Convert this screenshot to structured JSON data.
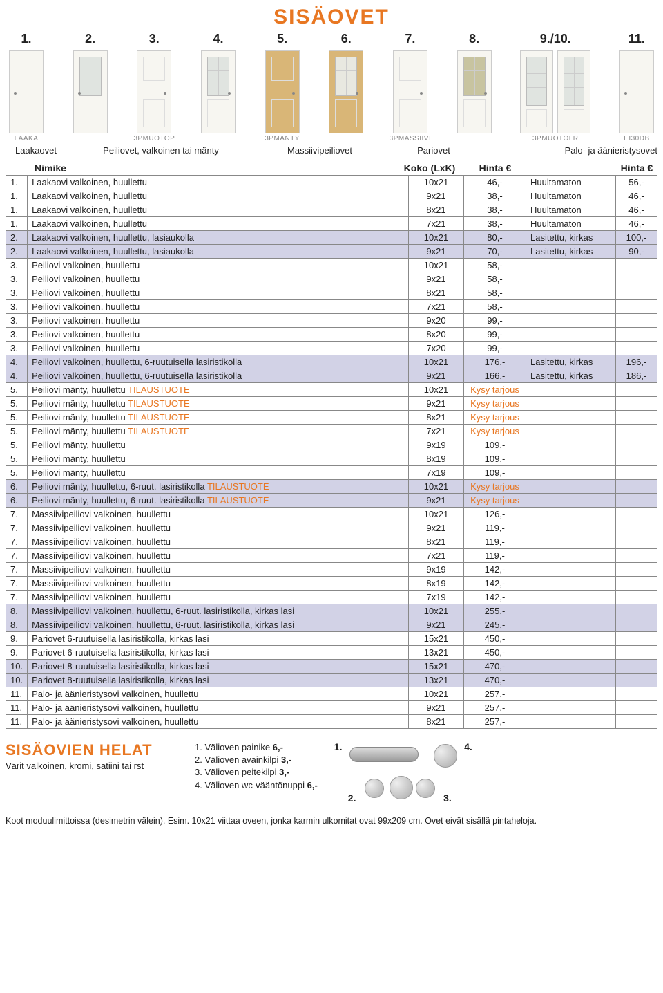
{
  "title": "SISÄOVET",
  "door_numbers": [
    "1.",
    "2.",
    "3.",
    "4.",
    "5.",
    "6.",
    "7.",
    "8.",
    "9./10.",
    "11."
  ],
  "door_codes": [
    "LAAKA",
    "3PMUOTOP",
    "3PMANTY",
    "3PMASSIIVI",
    "3PMUOTOLR",
    "EI30DB"
  ],
  "categories": {
    "c1": "Laakaovet",
    "c2": "Peiliovet, valkoinen tai mänty",
    "c3": "Massiivipeiliovet",
    "c4": "Pariovet",
    "c5": "Palo- ja äänieristysovet"
  },
  "headers": {
    "nimike": "Nimike",
    "koko": "Koko (LxK)",
    "hinta": "Hinta €",
    "hinta2": "Hinta €"
  },
  "rows": [
    {
      "n": "1.",
      "d": "Laakaovi valkoinen, huullettu",
      "s": "10x21",
      "p1": "46,-",
      "o": "Huultamaton",
      "p2": "56,-",
      "hl": 0
    },
    {
      "n": "1.",
      "d": "Laakaovi valkoinen, huullettu",
      "s": "9x21",
      "p1": "38,-",
      "o": "Huultamaton",
      "p2": "46,-",
      "hl": 0
    },
    {
      "n": "1.",
      "d": "Laakaovi valkoinen, huullettu",
      "s": "8x21",
      "p1": "38,-",
      "o": "Huultamaton",
      "p2": "46,-",
      "hl": 0
    },
    {
      "n": "1.",
      "d": "Laakaovi valkoinen, huullettu",
      "s": "7x21",
      "p1": "38,-",
      "o": "Huultamaton",
      "p2": "46,-",
      "hl": 0
    },
    {
      "n": "2.",
      "d": "Laakaovi valkoinen, huullettu, lasiaukolla",
      "s": "10x21",
      "p1": "80,-",
      "o": "Lasitettu, kirkas",
      "p2": "100,-",
      "hl": 1
    },
    {
      "n": "2.",
      "d": "Laakaovi valkoinen, huullettu, lasiaukolla",
      "s": "9x21",
      "p1": "70,-",
      "o": "Lasitettu, kirkas",
      "p2": "90,-",
      "hl": 1
    },
    {
      "n": "3.",
      "d": "Peiliovi valkoinen, huullettu",
      "s": "10x21",
      "p1": "58,-",
      "o": "",
      "p2": "",
      "hl": 0
    },
    {
      "n": "3.",
      "d": "Peiliovi valkoinen, huullettu",
      "s": "9x21",
      "p1": "58,-",
      "o": "",
      "p2": "",
      "hl": 0
    },
    {
      "n": "3.",
      "d": "Peiliovi valkoinen, huullettu",
      "s": "8x21",
      "p1": "58,-",
      "o": "",
      "p2": "",
      "hl": 0
    },
    {
      "n": "3.",
      "d": "Peiliovi valkoinen, huullettu",
      "s": "7x21",
      "p1": "58,-",
      "o": "",
      "p2": "",
      "hl": 0
    },
    {
      "n": "3.",
      "d": "Peiliovi valkoinen, huullettu",
      "s": "9x20",
      "p1": "99,-",
      "o": "",
      "p2": "",
      "hl": 0
    },
    {
      "n": "3.",
      "d": "Peiliovi valkoinen, huullettu",
      "s": "8x20",
      "p1": "99,-",
      "o": "",
      "p2": "",
      "hl": 0
    },
    {
      "n": "3.",
      "d": "Peiliovi valkoinen, huullettu",
      "s": "7x20",
      "p1": "99,-",
      "o": "",
      "p2": "",
      "hl": 0
    },
    {
      "n": "4.",
      "d": "Peiliovi valkoinen, huullettu, 6-ruutuisella lasiristikolla",
      "s": "10x21",
      "p1": "176,-",
      "o": "Lasitettu, kirkas",
      "p2": "196,-",
      "hl": 1
    },
    {
      "n": "4.",
      "d": "Peiliovi valkoinen, huullettu, 6-ruutuisella lasiristikolla",
      "s": "9x21",
      "p1": "166,-",
      "o": "Lasitettu, kirkas",
      "p2": "186,-",
      "hl": 1
    },
    {
      "n": "5.",
      "d": "Peiliovi mänty, huullettu ",
      "t": "TILAUSTUOTE",
      "s": "10x21",
      "p1o": "Kysy tarjous",
      "o": "",
      "p2": "",
      "hl": 0
    },
    {
      "n": "5.",
      "d": "Peiliovi mänty, huullettu ",
      "t": "TILAUSTUOTE",
      "s": "9x21",
      "p1o": "Kysy tarjous",
      "o": "",
      "p2": "",
      "hl": 0
    },
    {
      "n": "5.",
      "d": "Peiliovi mänty, huullettu ",
      "t": "TILAUSTUOTE",
      "s": "8x21",
      "p1o": "Kysy tarjous",
      "o": "",
      "p2": "",
      "hl": 0
    },
    {
      "n": "5.",
      "d": "Peiliovi mänty, huullettu ",
      "t": "TILAUSTUOTE",
      "s": "7x21",
      "p1o": "Kysy tarjous",
      "o": "",
      "p2": "",
      "hl": 0
    },
    {
      "n": "5.",
      "d": "Peiliovi mänty, huullettu",
      "s": "9x19",
      "p1": "109,-",
      "o": "",
      "p2": "",
      "hl": 0
    },
    {
      "n": "5.",
      "d": "Peiliovi mänty, huullettu",
      "s": "8x19",
      "p1": "109,-",
      "o": "",
      "p2": "",
      "hl": 0
    },
    {
      "n": "5.",
      "d": "Peiliovi mänty, huullettu",
      "s": "7x19",
      "p1": "109,-",
      "o": "",
      "p2": "",
      "hl": 0
    },
    {
      "n": "6.",
      "d": "Peiliovi mänty, huullettu, 6-ruut. lasiristikolla ",
      "t": "TILAUSTUOTE",
      "s": "10x21",
      "p1o": "Kysy tarjous",
      "o": "",
      "p2": "",
      "hl": 1
    },
    {
      "n": "6.",
      "d": "Peiliovi mänty, huullettu, 6-ruut. lasiristikolla ",
      "t": "TILAUSTUOTE",
      "s": "9x21",
      "p1o": "Kysy tarjous",
      "o": "",
      "p2": "",
      "hl": 1
    },
    {
      "n": "7.",
      "d": "Massiivipeiliovi valkoinen, huullettu",
      "s": "10x21",
      "p1": "126,-",
      "o": "",
      "p2": "",
      "hl": 0
    },
    {
      "n": "7.",
      "d": "Massiivipeiliovi valkoinen, huullettu",
      "s": "9x21",
      "p1": "119,-",
      "o": "",
      "p2": "",
      "hl": 0
    },
    {
      "n": "7.",
      "d": "Massiivipeiliovi valkoinen, huullettu",
      "s": "8x21",
      "p1": "119,-",
      "o": "",
      "p2": "",
      "hl": 0
    },
    {
      "n": "7.",
      "d": "Massiivipeiliovi valkoinen, huullettu",
      "s": "7x21",
      "p1": "119,-",
      "o": "",
      "p2": "",
      "hl": 0
    },
    {
      "n": "7.",
      "d": "Massiivipeiliovi valkoinen, huullettu",
      "s": "9x19",
      "p1": "142,-",
      "o": "",
      "p2": "",
      "hl": 0
    },
    {
      "n": "7.",
      "d": "Massiivipeiliovi valkoinen, huullettu",
      "s": "8x19",
      "p1": "142,-",
      "o": "",
      "p2": "",
      "hl": 0
    },
    {
      "n": "7.",
      "d": "Massiivipeiliovi valkoinen, huullettu",
      "s": "7x19",
      "p1": "142,-",
      "o": "",
      "p2": "",
      "hl": 0
    },
    {
      "n": "8.",
      "d": "Massiivipeiliovi valkoinen, huullettu, 6-ruut. lasiristikolla, kirkas lasi",
      "s": "10x21",
      "p1": "255,-",
      "o": "",
      "p2": "",
      "hl": 1
    },
    {
      "n": "8.",
      "d": "Massiivipeiliovi valkoinen, huullettu, 6-ruut. lasiristikolla, kirkas lasi",
      "s": "9x21",
      "p1": "245,-",
      "o": "",
      "p2": "",
      "hl": 1
    },
    {
      "n": "9.",
      "d": "Pariovet 6-ruutuisella lasiristikolla,  kirkas lasi",
      "s": "15x21",
      "p1": "450,-",
      "o": "",
      "p2": "",
      "hl": 0
    },
    {
      "n": "9.",
      "d": "Pariovet 6-ruutuisella lasiristikolla,  kirkas lasi",
      "s": "13x21",
      "p1": "450,-",
      "o": "",
      "p2": "",
      "hl": 0
    },
    {
      "n": "10.",
      "d": "Pariovet 8-ruutuisella lasiristikolla,  kirkas lasi",
      "s": "15x21",
      "p1": "470,-",
      "o": "",
      "p2": "",
      "hl": 1
    },
    {
      "n": "10.",
      "d": "Pariovet 8-ruutuisella lasiristikolla,  kirkas lasi",
      "s": "13x21",
      "p1": "470,-",
      "o": "",
      "p2": "",
      "hl": 1
    },
    {
      "n": "11.",
      "d": "Palo- ja äänieristysovi valkoinen, huullettu",
      "s": "10x21",
      "p1": "257,-",
      "o": "",
      "p2": "",
      "hl": 0
    },
    {
      "n": "11.",
      "d": "Palo- ja äänieristysovi valkoinen, huullettu",
      "s": "9x21",
      "p1": "257,-",
      "o": "",
      "p2": "",
      "hl": 0
    },
    {
      "n": "11.",
      "d": "Palo- ja äänieristysovi valkoinen, huullettu",
      "s": "8x21",
      "p1": "257,-",
      "o": "",
      "p2": "",
      "hl": 0
    }
  ],
  "helat": {
    "title": "SISÄOVIEN HELAT",
    "sub": "Värit valkoinen, kromi, satiini tai rst",
    "items": [
      "1. Välioven painike 6,-",
      "2. Välioven avainkilpi 3,-",
      "3. Välioven peitekilpi 3,-",
      "4. Välioven wc-vääntönuppi 6,-"
    ],
    "img_labels": [
      "1.",
      "2.",
      "3.",
      "4."
    ]
  },
  "footnote": "Koot moduulimittoissa (desimetrin välein). Esim. 10x21 viittaa oveen, jonka karmin ulkomitat ovat 99x209 cm. Ovet eivät sisällä pintaheloja.",
  "colors": {
    "accent": "#e87722",
    "row_hl": "#d2d2e6",
    "border": "#888888"
  }
}
